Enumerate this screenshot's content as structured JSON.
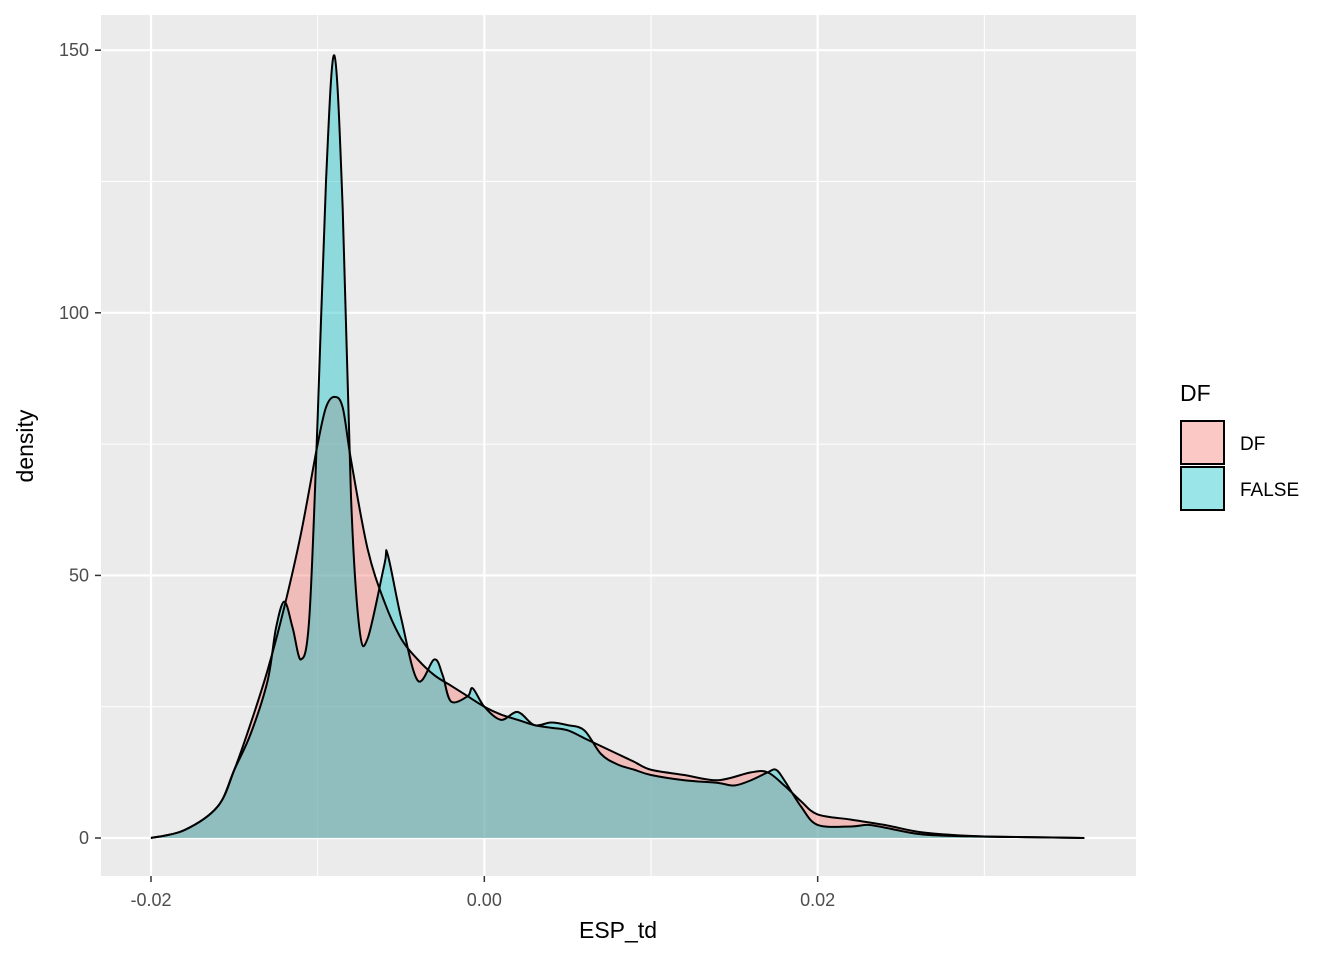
{
  "chart_data": {
    "type": "density",
    "xlabel": "ESP_td",
    "ylabel": "density",
    "xlim": [
      -0.023,
      0.0391
    ],
    "ylim": [
      -7.23,
      156.7
    ],
    "xticks": [
      -0.02,
      {
        "value": 0,
        "label": "0.00"
      },
      0.02
    ],
    "x_minor_ticks": [
      -0.01,
      0.01,
      0.03
    ],
    "yticks": [
      0,
      50,
      100,
      150
    ],
    "y_minor_ticks": [
      25,
      75,
      125
    ],
    "grid": true,
    "legend_title": "DF",
    "legend_position": "right",
    "fill_opacity": 0.4,
    "series": [
      {
        "name": "DF",
        "color": "#F8766D",
        "x": [
          -0.02,
          -0.018,
          -0.016,
          -0.015,
          -0.014,
          -0.013,
          -0.012,
          -0.011,
          -0.01,
          -0.0095,
          -0.009,
          -0.0085,
          -0.008,
          -0.007,
          -0.006,
          -0.005,
          -0.004,
          -0.003,
          -0.002,
          -0.001,
          0,
          0.001,
          0.002,
          0.003,
          0.004,
          0.005,
          0.006,
          0.007,
          0.008,
          0.009,
          0.01,
          0.012,
          0.014,
          0.016,
          0.017,
          0.018,
          0.019,
          0.02,
          0.022,
          0.024,
          0.026,
          0.028,
          0.03,
          0.033,
          0.036
        ],
        "values": [
          0,
          1.5,
          6,
          13,
          22,
          32,
          44,
          58,
          75,
          82,
          84,
          82,
          72,
          55,
          45,
          38,
          34,
          31,
          29,
          27,
          25,
          23.5,
          22.5,
          21.5,
          21,
          20.5,
          19,
          17.5,
          16,
          14.5,
          13,
          12,
          11,
          12.5,
          12.5,
          10,
          7,
          4.5,
          3.5,
          2.5,
          1.2,
          0.6,
          0.3,
          0.15,
          0
        ]
      },
      {
        "name": "FALSE",
        "color": "#00BFC4",
        "x": [
          -0.02,
          -0.018,
          -0.016,
          -0.015,
          -0.014,
          -0.013,
          -0.0125,
          -0.012,
          -0.0115,
          -0.011,
          -0.0105,
          -0.01,
          -0.0095,
          -0.009,
          -0.0085,
          -0.008,
          -0.0075,
          -0.007,
          -0.006,
          -0.0058,
          -0.005,
          -0.004,
          -0.003,
          -0.0025,
          -0.002,
          -0.001,
          -0.0007,
          0,
          0.001,
          0.002,
          0.003,
          0.004,
          0.005,
          0.006,
          0.007,
          0.008,
          0.009,
          0.01,
          0.012,
          0.014,
          0.015,
          0.016,
          0.017,
          0.0175,
          0.018,
          0.019,
          0.02,
          0.022,
          0.023,
          0.024,
          0.026,
          0.028,
          0.03,
          0.033,
          0.036
        ],
        "values": [
          0,
          1.5,
          6,
          13,
          20,
          30,
          40,
          45,
          40,
          34,
          42,
          80,
          125,
          149,
          120,
          65,
          40,
          38,
          52,
          54,
          42,
          30,
          34,
          31,
          26,
          27,
          28.5,
          25,
          22.5,
          24,
          21.5,
          22,
          21.5,
          20.5,
          16,
          14,
          13,
          12,
          11,
          10.5,
          10,
          11,
          12.5,
          13,
          11,
          6,
          2.5,
          2.2,
          2.5,
          2,
          0.8,
          0.4,
          0.3,
          0.15,
          0
        ]
      }
    ]
  }
}
